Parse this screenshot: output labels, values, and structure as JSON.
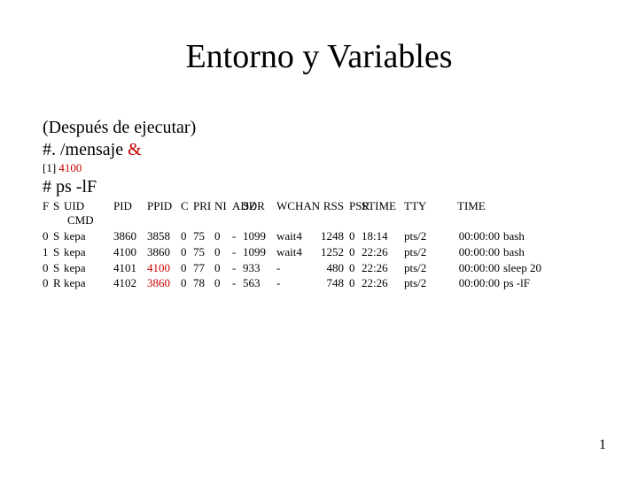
{
  "title": "Entorno y Variables",
  "subtitle1": "(Después de ejecutar)",
  "subtitle2_a": "#. /mensaje ",
  "subtitle2_b": "&",
  "job_a": "[1] ",
  "job_b": "4100",
  "pscmd": "# ps -lF",
  "header": {
    "f": "F",
    "s": "S",
    "uid": "UID",
    "pid": "PID",
    "ppid": "PPID",
    "c": "C",
    "pri": "PRI",
    "ni": "NI",
    "addr": "ADDR",
    "sz": "SZ",
    "wchan": "WCHAN",
    "rss": "RSS",
    "psr": "PSR",
    "stime": "STIME",
    "tty": "TTY",
    "time": "TIME",
    "cmd": "CMD"
  },
  "rows": [
    {
      "f": "0",
      "s": "S",
      "uid": "kepa",
      "pid": "3860",
      "ppid": "3858",
      "ppid_red": false,
      "c": "0",
      "pri": "75",
      "ni": "0",
      "addr": "-",
      "sz": "1099",
      "wchan": "wait4",
      "rss": "1248",
      "psr": "0",
      "stime": "18:14",
      "tty": "pts/2",
      "time": "00:00:00",
      "cmd": "bash"
    },
    {
      "f": "1",
      "s": "S",
      "uid": "kepa",
      "pid": "4100",
      "ppid": "3860",
      "ppid_red": false,
      "c": "0",
      "pri": "75",
      "ni": "0",
      "addr": "-",
      "sz": "1099",
      "wchan": "wait4",
      "rss": "1252",
      "psr": "0",
      "stime": "22:26",
      "tty": "pts/2",
      "time": "00:00:00",
      "cmd": "bash"
    },
    {
      "f": "0",
      "s": "S",
      "uid": "kepa",
      "pid": "4101",
      "ppid": "4100",
      "ppid_red": true,
      "c": "0",
      "pri": "77",
      "ni": "0",
      "addr": "-",
      "sz": "933",
      "wchan": "-",
      "rss": "480",
      "psr": "0",
      "stime": "22:26",
      "tty": "pts/2",
      "time": "00:00:00",
      "cmd": "sleep 20"
    },
    {
      "f": "0",
      "s": "R",
      "uid": "kepa",
      "pid": "4102",
      "ppid": "3860",
      "ppid_red": true,
      "c": "0",
      "pri": "78",
      "ni": "0",
      "addr": "-",
      "sz": "563",
      "wchan": "-",
      "rss": "748",
      "psr": "0",
      "stime": "22:26",
      "tty": "pts/2",
      "time": "00:00:00",
      "cmd": "ps -lF"
    }
  ],
  "pagenum": "1"
}
